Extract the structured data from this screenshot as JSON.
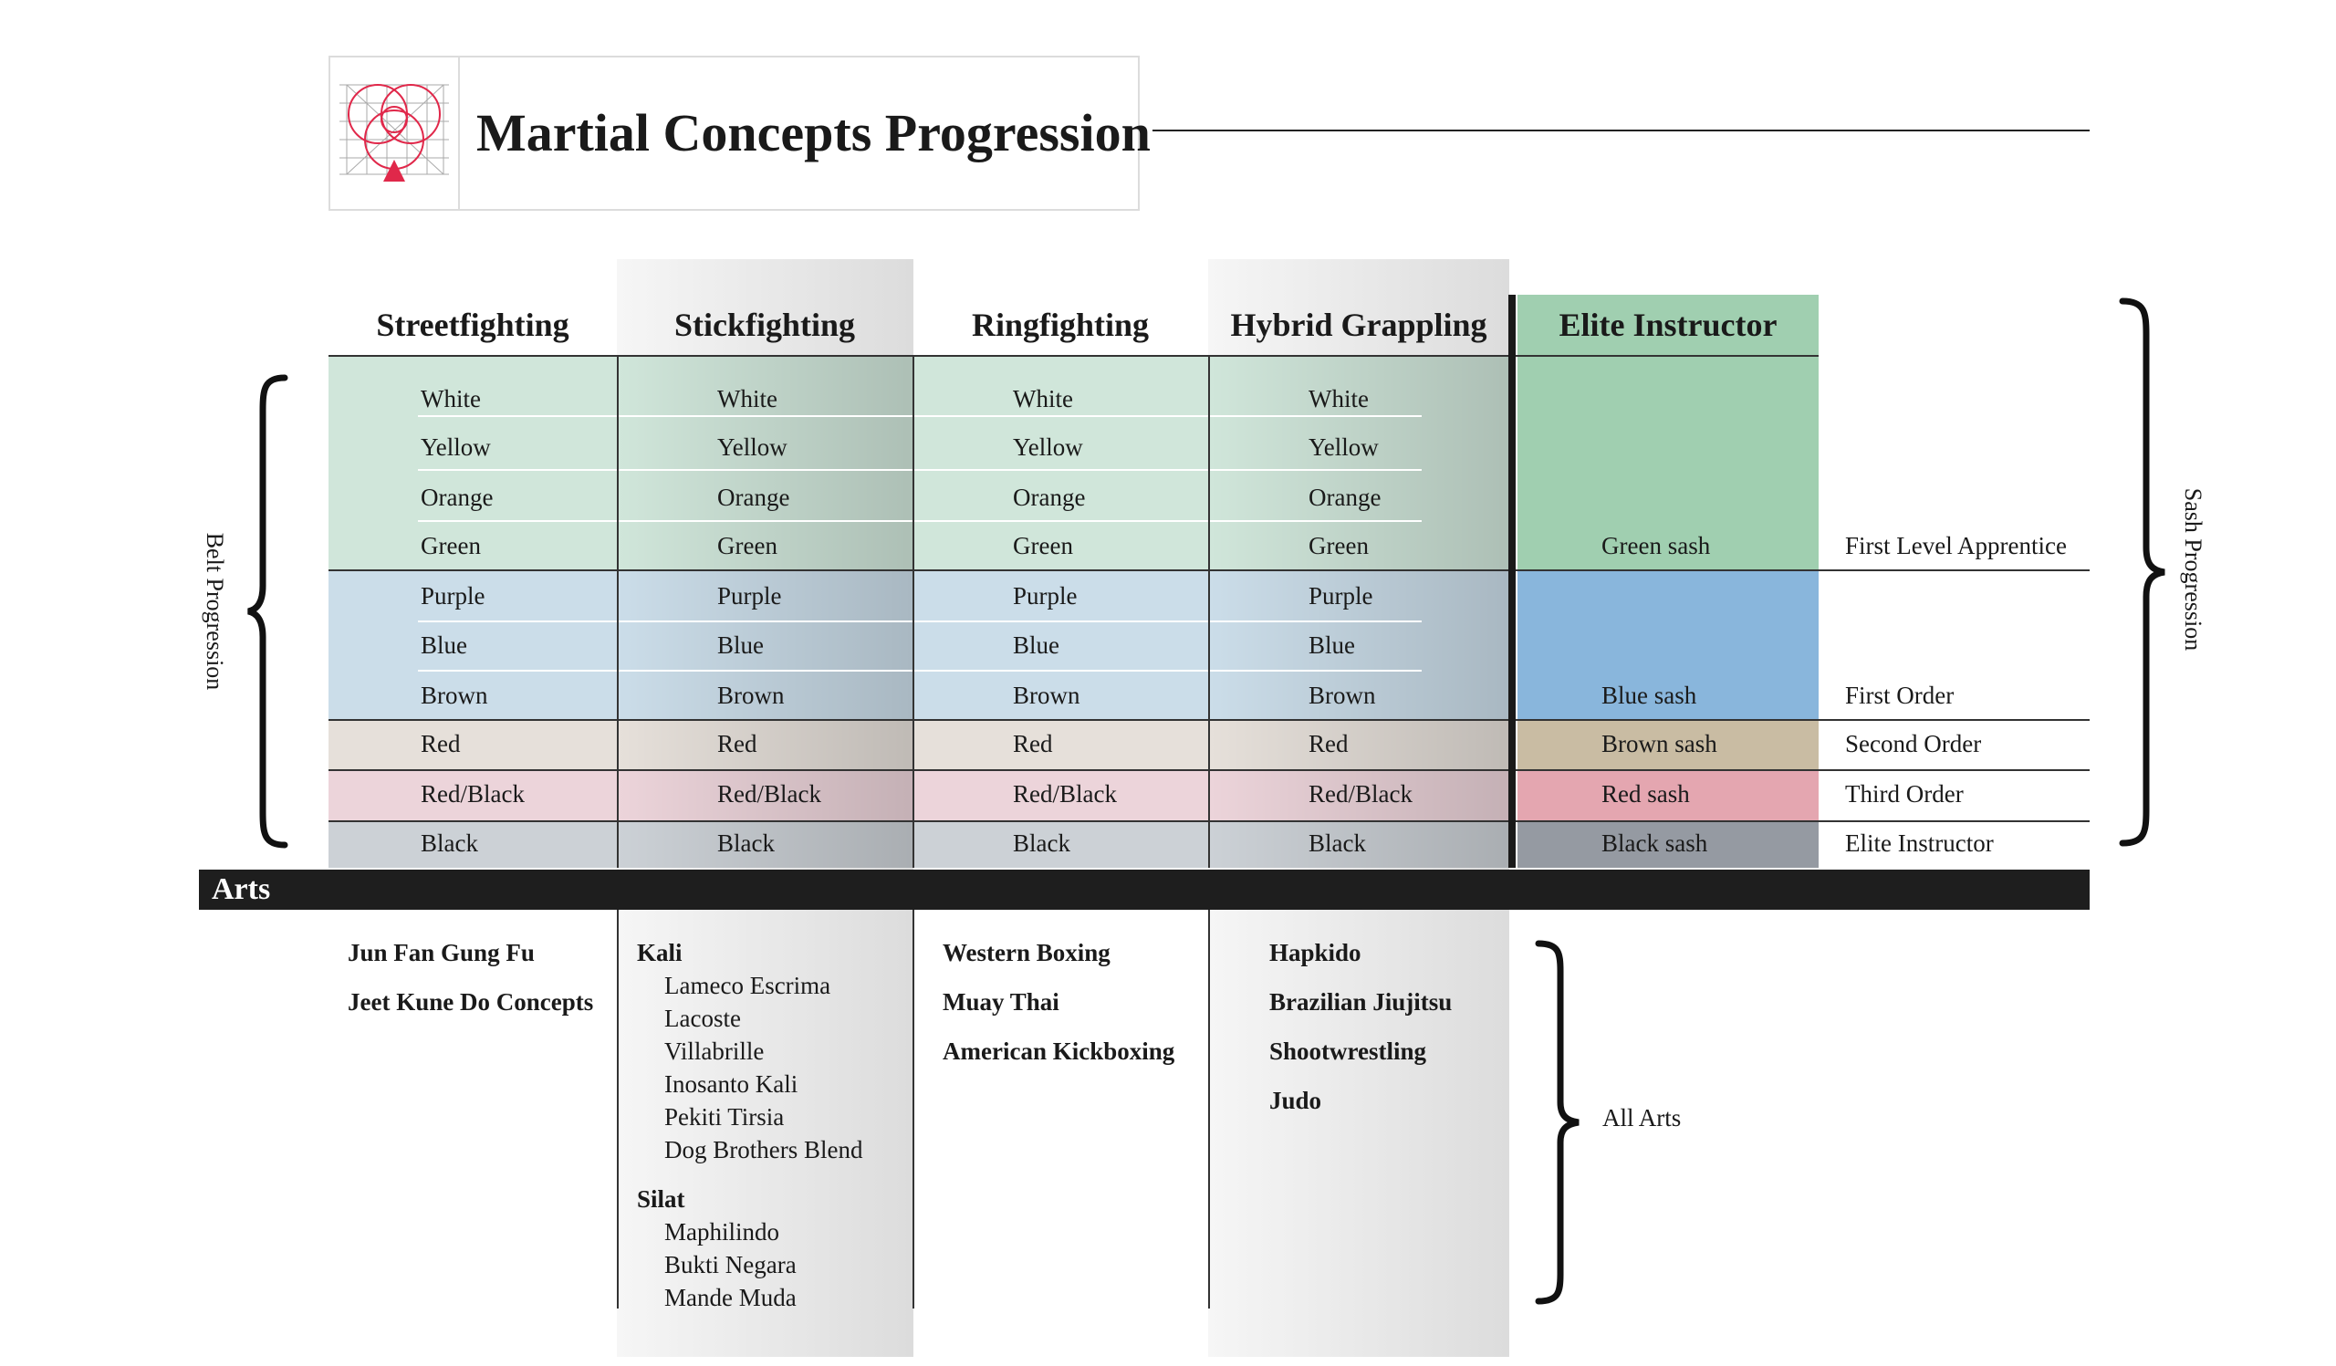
{
  "header": {
    "title": "Martial Concepts Progression"
  },
  "columns": [
    "Streetfighting",
    "Stickfighting",
    "Ringfighting",
    "Hybrid Grappling"
  ],
  "elite_column": "Elite Instructor",
  "belts": [
    "White",
    "Yellow",
    "Orange",
    "Green",
    "Purple",
    "Blue",
    "Brown",
    "Red",
    "Red/Black",
    "Black"
  ],
  "sashes": {
    "green": {
      "sash": "Green sash",
      "title": "First Level Apprentice"
    },
    "blue": {
      "sash": "Blue sash",
      "title": "First Order"
    },
    "brown": {
      "sash": "Brown sash",
      "title": "Second Order"
    },
    "red": {
      "sash": "Red sash",
      "title": "Third Order"
    },
    "black": {
      "sash": "Black sash",
      "title": "Elite Instructor"
    }
  },
  "side_labels": {
    "belt": "Belt Progression",
    "sash": "Sash Progression",
    "all_arts": "All Arts"
  },
  "arts_label": "Arts",
  "arts": {
    "streetfighting": [
      "Jun Fan Gung Fu",
      "Jeet Kune Do Concepts"
    ],
    "stickfighting": {
      "kali": "Kali",
      "kali_styles": [
        "Lameco Escrima",
        "Lacoste",
        "Villabrille",
        "Inosanto Kali",
        "Pekiti Tirsia",
        "Dog Brothers Blend"
      ],
      "silat": "Silat",
      "silat_styles": [
        "Maphilindo",
        "Bukti Negara",
        "Mande Muda"
      ]
    },
    "ringfighting": [
      "Western Boxing",
      "Muay Thai",
      "American Kickboxing"
    ],
    "hybrid_grappling": [
      "Hapkido",
      "Brazilian Jiujitsu",
      "Shootwrestling",
      "Judo"
    ]
  },
  "colors": {
    "band_green": "#d0e6da",
    "band_blue": "#cbdde9",
    "band_red": "#e6e0da",
    "band_redblack": "#ecd4da",
    "band_black": "#ccd1d6",
    "elite_green": "#a0cfb0",
    "elite_blue": "#89b6dc",
    "elite_brown": "#c9bca3",
    "elite_red": "#e4a6b0",
    "elite_black": "#959aa2",
    "logo_accent": "#e0284a"
  }
}
